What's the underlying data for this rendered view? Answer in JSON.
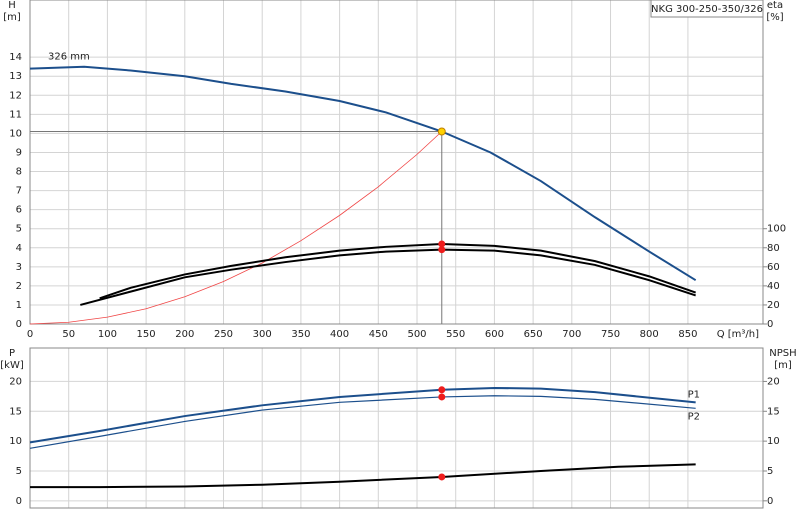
{
  "chart_data": [
    {
      "type": "line",
      "title": "NKG 300-250-350/326",
      "ylabel": [
        "H",
        "[m]"
      ],
      "y2label": [
        "eta",
        "[%]"
      ],
      "xlabel": "Q [m³/h]",
      "xlim": [
        0,
        947
      ],
      "ylim": [
        0,
        17
      ],
      "y2lim": [
        0,
        340
      ],
      "xticks": [
        0,
        50,
        100,
        150,
        200,
        250,
        300,
        350,
        400,
        450,
        500,
        550,
        600,
        650,
        700,
        750,
        800,
        850
      ],
      "yticks": [
        0,
        1,
        2,
        3,
        4,
        5,
        6,
        7,
        8,
        9,
        10,
        11,
        12,
        13,
        14
      ],
      "y2ticks": [
        0,
        20,
        40,
        60,
        80,
        100
      ],
      "grid": true,
      "series": [
        {
          "name": "326 mm",
          "label_pos": "start",
          "color": "#1c4f8c",
          "line_width": 2,
          "x": [
            0,
            70,
            130,
            200,
            260,
            330,
            400,
            460,
            532,
            595,
            660,
            730,
            800,
            860
          ],
          "values": [
            13.4,
            13.5,
            13.3,
            13.0,
            12.6,
            12.2,
            11.7,
            11.1,
            10.1,
            9.0,
            7.5,
            5.6,
            3.8,
            2.3
          ]
        },
        {
          "color": "#f04545",
          "line_width": 0.8,
          "x": [
            0,
            50,
            100,
            150,
            200,
            250,
            300,
            350,
            400,
            450,
            500,
            532
          ],
          "values": [
            0,
            0.09,
            0.36,
            0.8,
            1.43,
            2.23,
            3.2,
            4.37,
            5.7,
            7.2,
            8.9,
            10.1
          ]
        },
        {
          "color": "#000000",
          "line_width": 2,
          "axis": "y2",
          "x": [
            90,
            130,
            200,
            260,
            330,
            400,
            460,
            532,
            600,
            660,
            730,
            800,
            860
          ],
          "values": [
            27,
            38,
            52,
            61,
            70,
            77,
            81,
            84,
            82,
            77,
            66,
            50,
            33
          ]
        },
        {
          "color": "#000000",
          "line_width": 2,
          "axis": "y2",
          "x": [
            65,
            130,
            200,
            260,
            330,
            400,
            460,
            532,
            600,
            660,
            730,
            800,
            860
          ],
          "values": [
            20,
            34,
            49,
            57,
            65,
            72,
            76,
            78,
            77,
            72,
            62,
            46,
            30
          ]
        }
      ],
      "markers": [
        {
          "x": 532,
          "y": 10.1,
          "color": "#ffd200",
          "guides": true
        },
        {
          "x": 532,
          "y": 84,
          "color": "#ee1c1c",
          "axis": "y2"
        },
        {
          "x": 532,
          "y": 78,
          "color": "#ee1c1c",
          "axis": "y2"
        }
      ]
    },
    {
      "type": "line",
      "ylabel": [
        "P",
        "[kW]"
      ],
      "y2label": [
        "NPSH",
        "[m]"
      ],
      "xlim": [
        0,
        947
      ],
      "ylim": [
        -1.2,
        25.6
      ],
      "y2lim": [
        -1.2,
        25.6
      ],
      "yticks": [
        0,
        5,
        10,
        15,
        20
      ],
      "y2ticks": [
        0,
        5,
        10,
        15,
        20
      ],
      "grid": true,
      "series": [
        {
          "name": "P1",
          "label_pos": "end",
          "color": "#1c4f8c",
          "line_width": 2,
          "x": [
            0,
            90,
            200,
            300,
            400,
            532,
            600,
            660,
            730,
            860
          ],
          "values": [
            9.8,
            11.7,
            14.2,
            16.0,
            17.4,
            18.6,
            18.9,
            18.8,
            18.2,
            16.5
          ]
        },
        {
          "name": "P2",
          "label_pos": "end",
          "color": "#1c4f8c",
          "line_width": 1.2,
          "x": [
            0,
            90,
            200,
            300,
            400,
            532,
            600,
            660,
            730,
            860
          ],
          "values": [
            8.8,
            10.8,
            13.3,
            15.2,
            16.5,
            17.4,
            17.6,
            17.5,
            17.0,
            15.5
          ]
        },
        {
          "color": "#000000",
          "line_width": 2,
          "axis": "y2",
          "x": [
            0,
            90,
            200,
            300,
            400,
            532,
            660,
            760,
            860
          ],
          "values": [
            2.3,
            2.3,
            2.4,
            2.7,
            3.2,
            4.0,
            5.0,
            5.7,
            6.1
          ]
        }
      ],
      "markers": [
        {
          "x": 532,
          "y": 18.6,
          "color": "#ee1c1c"
        },
        {
          "x": 532,
          "y": 17.4,
          "color": "#ee1c1c"
        },
        {
          "x": 532,
          "y": 4.0,
          "color": "#ee1c1c",
          "axis": "y2"
        }
      ]
    }
  ]
}
